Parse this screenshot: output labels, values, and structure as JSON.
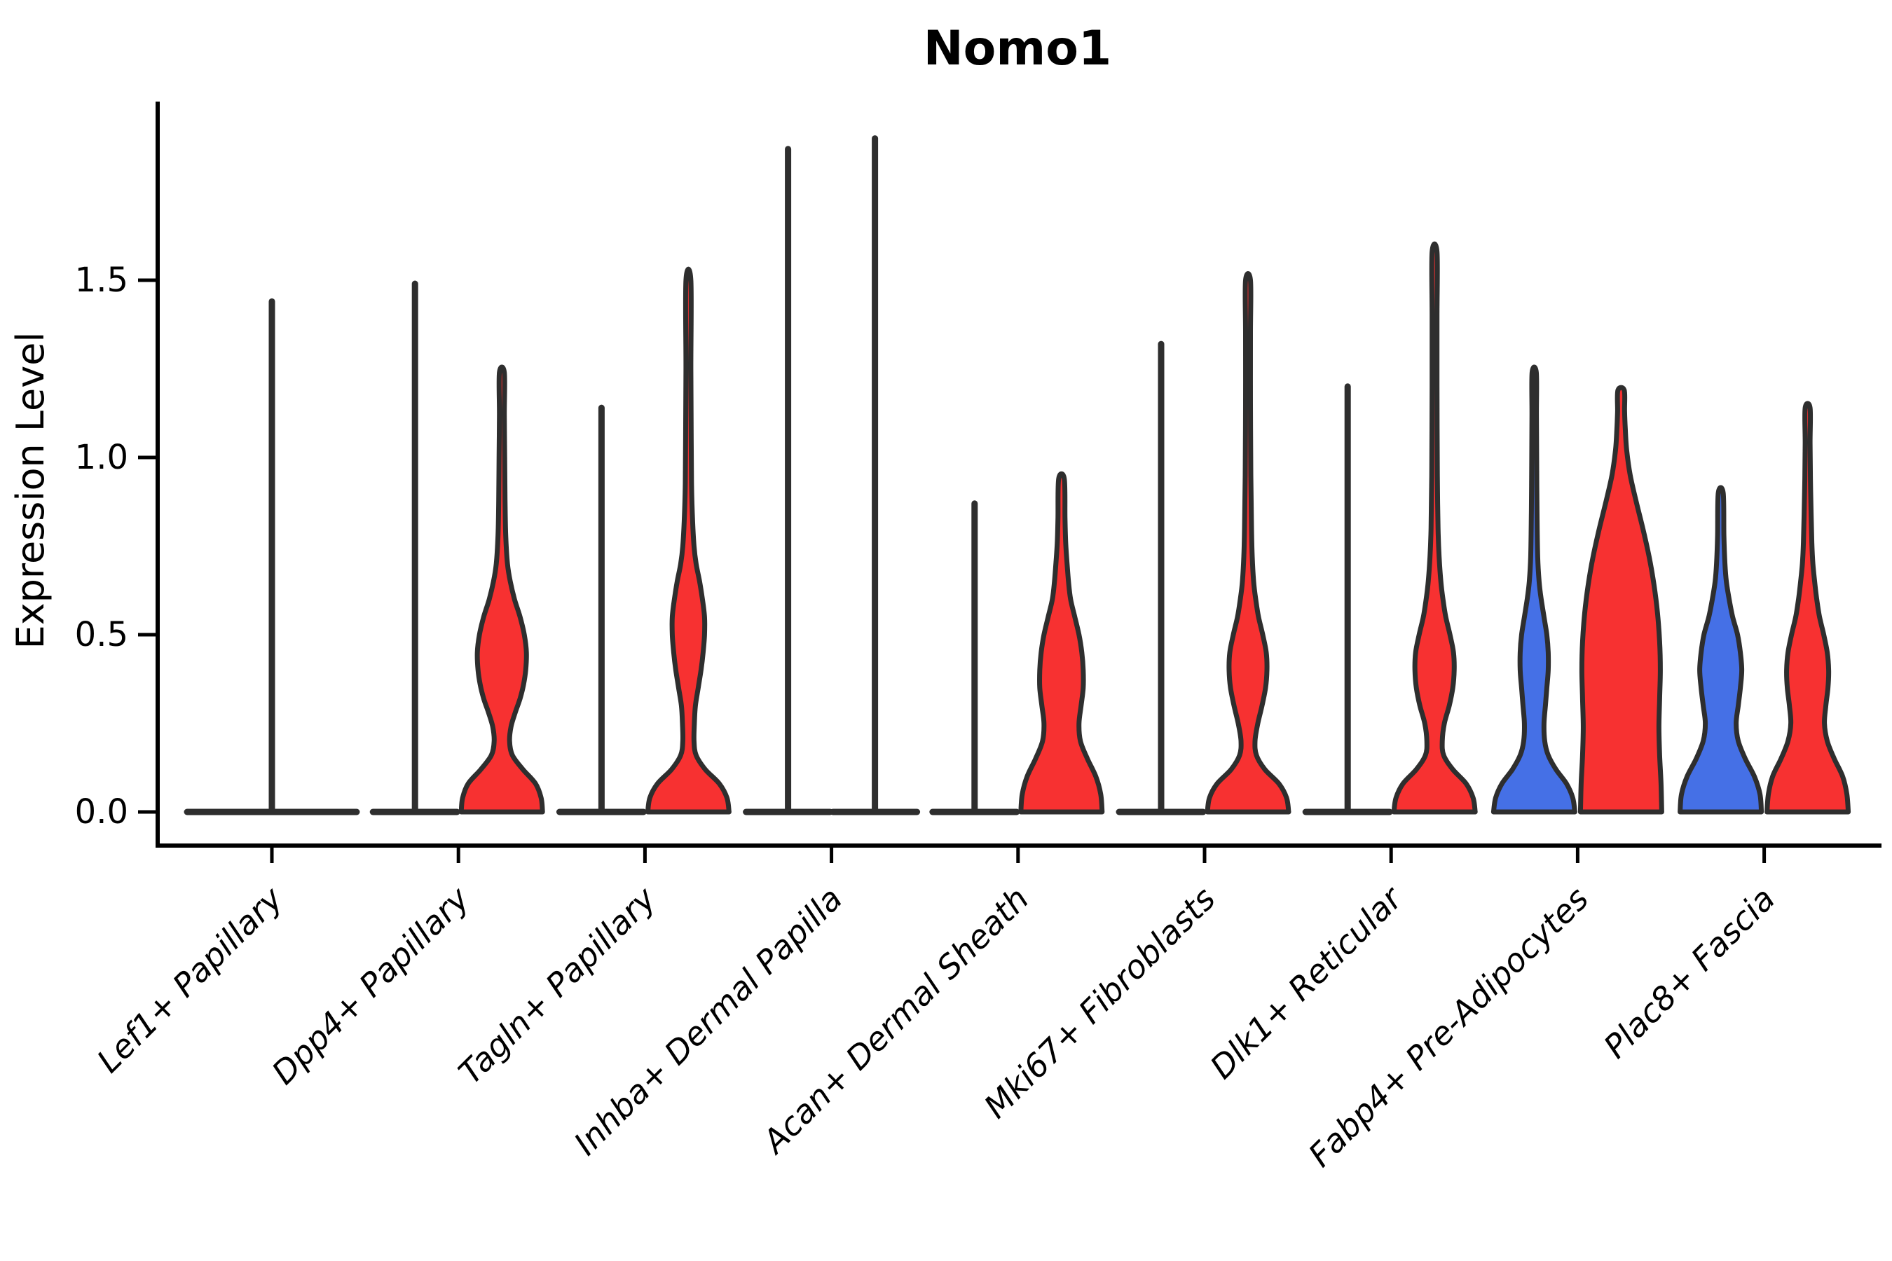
{
  "title": "Nomo1",
  "axes": {
    "ylabel": "Expression Level",
    "ytick_labels": [
      "0.0",
      "0.5",
      "1.0",
      "1.5"
    ]
  },
  "chart_data": {
    "type": "violin",
    "title": "Nomo1",
    "xlabel": "",
    "ylabel": "Expression Level",
    "ylim": [
      -0.1,
      2.0
    ],
    "yticks": [
      0.0,
      0.5,
      1.0,
      1.5
    ],
    "grid": false,
    "legend": "none",
    "palette": {
      "blue": "#4570E6",
      "red": "#F73131",
      "outline": "#2E2E2E"
    },
    "categories": [
      "Lef1+ Papillary",
      "Dpp4+ Papillary",
      "Tagln+ Papillary",
      "Inhba+ Dermal Papilla",
      "Acan+ Dermal Sheath",
      "Mki67+ Fibroblasts",
      "Dlk1+ Reticular",
      "Fabp4+ Pre-Adipocytes",
      "Plac8+ Fascia"
    ],
    "groups": [
      {
        "category": "Lef1+ Papillary",
        "violins": [
          {
            "kind": "spike",
            "fill": "none",
            "max": 1.44,
            "base_half_width": 121
          }
        ]
      },
      {
        "category": "Dpp4+ Papillary",
        "violins": [
          {
            "kind": "spike",
            "fill": "none",
            "max": 1.49,
            "base_half_width": 60
          },
          {
            "kind": "density",
            "fill": "red",
            "max": 1.24,
            "profile": [
              [
                0,
                58
              ],
              [
                0.04,
                56
              ],
              [
                0.08,
                48
              ],
              [
                0.12,
                30
              ],
              [
                0.16,
                15
              ],
              [
                0.2,
                11
              ],
              [
                0.24,
                13
              ],
              [
                0.28,
                19
              ],
              [
                0.32,
                26
              ],
              [
                0.36,
                31
              ],
              [
                0.4,
                34
              ],
              [
                0.45,
                35
              ],
              [
                0.5,
                32
              ],
              [
                0.55,
                26
              ],
              [
                0.6,
                18
              ],
              [
                0.65,
                12
              ],
              [
                0.7,
                8
              ],
              [
                0.78,
                5.5
              ],
              [
                0.88,
                4.5
              ],
              [
                1.0,
                4
              ],
              [
                1.12,
                3.5
              ],
              [
                1.24,
                3.5
              ]
            ]
          }
        ]
      },
      {
        "category": "Tagln+ Papillary",
        "violins": [
          {
            "kind": "spike",
            "fill": "none",
            "max": 1.14,
            "base_half_width": 60
          },
          {
            "kind": "density",
            "fill": "red",
            "max": 1.5,
            "profile": [
              [
                0,
                58
              ],
              [
                0.04,
                55
              ],
              [
                0.08,
                44
              ],
              [
                0.12,
                24
              ],
              [
                0.16,
                11
              ],
              [
                0.2,
                8
              ],
              [
                0.25,
                8.5
              ],
              [
                0.3,
                10
              ],
              [
                0.35,
                14
              ],
              [
                0.4,
                18
              ],
              [
                0.45,
                21
              ],
              [
                0.5,
                23
              ],
              [
                0.55,
                23
              ],
              [
                0.6,
                20
              ],
              [
                0.65,
                16
              ],
              [
                0.7,
                11
              ],
              [
                0.75,
                8
              ],
              [
                0.82,
                6
              ],
              [
                0.92,
                4.5
              ],
              [
                1.05,
                4
              ],
              [
                1.25,
                3.5
              ],
              [
                1.5,
                3.5
              ]
            ]
          }
        ]
      },
      {
        "category": "Inhba+ Dermal Papilla",
        "violins": [
          {
            "kind": "spike",
            "fill": "none",
            "max": 1.87,
            "base_half_width": 60
          },
          {
            "kind": "spike",
            "fill": "none",
            "max": 1.9,
            "base_half_width": 60
          }
        ]
      },
      {
        "category": "Acan+ Dermal Sheath",
        "violins": [
          {
            "kind": "spike",
            "fill": "none",
            "max": 0.87,
            "base_half_width": 60
          },
          {
            "kind": "density",
            "fill": "red",
            "max": 0.94,
            "profile": [
              [
                0,
                58
              ],
              [
                0.05,
                56
              ],
              [
                0.1,
                49
              ],
              [
                0.15,
                37
              ],
              [
                0.2,
                27
              ],
              [
                0.25,
                25
              ],
              [
                0.3,
                28
              ],
              [
                0.35,
                31
              ],
              [
                0.4,
                31
              ],
              [
                0.45,
                29
              ],
              [
                0.5,
                25
              ],
              [
                0.55,
                19
              ],
              [
                0.6,
                13
              ],
              [
                0.65,
                10
              ],
              [
                0.7,
                8
              ],
              [
                0.76,
                6
              ],
              [
                0.83,
                5
              ],
              [
                0.94,
                4
              ]
            ]
          }
        ]
      },
      {
        "category": "Mki67+ Fibroblasts",
        "violins": [
          {
            "kind": "spike",
            "fill": "none",
            "max": 1.32,
            "base_half_width": 60
          },
          {
            "kind": "density",
            "fill": "red",
            "max": 1.5,
            "profile": [
              [
                0,
                58
              ],
              [
                0.04,
                55
              ],
              [
                0.08,
                44
              ],
              [
                0.12,
                24
              ],
              [
                0.16,
                12
              ],
              [
                0.2,
                10
              ],
              [
                0.25,
                14
              ],
              [
                0.3,
                20
              ],
              [
                0.35,
                25
              ],
              [
                0.4,
                27
              ],
              [
                0.45,
                26
              ],
              [
                0.5,
                21
              ],
              [
                0.55,
                15
              ],
              [
                0.6,
                11
              ],
              [
                0.65,
                8
              ],
              [
                0.72,
                6
              ],
              [
                0.8,
                5
              ],
              [
                0.95,
                4
              ],
              [
                1.15,
                3.5
              ],
              [
                1.35,
                3.5
              ],
              [
                1.5,
                3.5
              ]
            ]
          }
        ]
      },
      {
        "category": "Dlk1+ Reticular",
        "violins": [
          {
            "kind": "spike",
            "fill": "none",
            "max": 1.2,
            "base_half_width": 60
          },
          {
            "kind": "density",
            "fill": "red",
            "max": 1.58,
            "profile": [
              [
                0,
                58
              ],
              [
                0.04,
                55
              ],
              [
                0.08,
                45
              ],
              [
                0.12,
                26
              ],
              [
                0.16,
                13
              ],
              [
                0.2,
                11
              ],
              [
                0.25,
                14
              ],
              [
                0.3,
                21
              ],
              [
                0.35,
                26
              ],
              [
                0.4,
                28
              ],
              [
                0.45,
                27
              ],
              [
                0.5,
                22
              ],
              [
                0.55,
                16
              ],
              [
                0.6,
                12
              ],
              [
                0.65,
                9
              ],
              [
                0.72,
                6.5
              ],
              [
                0.8,
                5
              ],
              [
                0.95,
                4
              ],
              [
                1.2,
                3.5
              ],
              [
                1.4,
                3.5
              ],
              [
                1.58,
                3.5
              ]
            ]
          }
        ]
      },
      {
        "category": "Fabp4+ Pre-Adipocytes",
        "violins": [
          {
            "kind": "density",
            "fill": "blue",
            "max": 1.24,
            "profile": [
              [
                0,
                58
              ],
              [
                0.04,
                55
              ],
              [
                0.08,
                46
              ],
              [
                0.12,
                31
              ],
              [
                0.16,
                20
              ],
              [
                0.2,
                15
              ],
              [
                0.25,
                14
              ],
              [
                0.3,
                16
              ],
              [
                0.35,
                18
              ],
              [
                0.4,
                20
              ],
              [
                0.45,
                20
              ],
              [
                0.5,
                18
              ],
              [
                0.55,
                14
              ],
              [
                0.6,
                10
              ],
              [
                0.65,
                7
              ],
              [
                0.72,
                5
              ],
              [
                0.85,
                4
              ],
              [
                1.0,
                3.5
              ],
              [
                1.12,
                3.2
              ],
              [
                1.24,
                3
              ]
            ]
          },
          {
            "kind": "density",
            "fill": "red",
            "max": 1.19,
            "profile": [
              [
                0,
                58
              ],
              [
                0.08,
                57
              ],
              [
                0.16,
                55
              ],
              [
                0.24,
                54
              ],
              [
                0.32,
                55
              ],
              [
                0.4,
                56
              ],
              [
                0.48,
                55
              ],
              [
                0.56,
                52
              ],
              [
                0.64,
                47
              ],
              [
                0.72,
                40
              ],
              [
                0.8,
                31
              ],
              [
                0.88,
                21
              ],
              [
                0.95,
                13
              ],
              [
                1.02,
                8
              ],
              [
                1.08,
                6
              ],
              [
                1.13,
                5
              ],
              [
                1.19,
                4.5
              ]
            ]
          }
        ]
      },
      {
        "category": "Plac8+ Fascia",
        "violins": [
          {
            "kind": "density",
            "fill": "blue",
            "max": 0.9,
            "profile": [
              [
                0,
                58
              ],
              [
                0.05,
                56
              ],
              [
                0.1,
                48
              ],
              [
                0.15,
                35
              ],
              [
                0.2,
                25
              ],
              [
                0.25,
                22
              ],
              [
                0.3,
                25
              ],
              [
                0.35,
                28
              ],
              [
                0.4,
                30
              ],
              [
                0.45,
                28
              ],
              [
                0.5,
                24
              ],
              [
                0.55,
                17
              ],
              [
                0.6,
                12
              ],
              [
                0.65,
                8
              ],
              [
                0.7,
                6
              ],
              [
                0.78,
                4.5
              ],
              [
                0.9,
                3.5
              ]
            ]
          },
          {
            "kind": "density",
            "fill": "red",
            "max": 1.14,
            "profile": [
              [
                0,
                58
              ],
              [
                0.05,
                56
              ],
              [
                0.1,
                50
              ],
              [
                0.15,
                38
              ],
              [
                0.2,
                28
              ],
              [
                0.25,
                24
              ],
              [
                0.3,
                26
              ],
              [
                0.35,
                29
              ],
              [
                0.4,
                30
              ],
              [
                0.45,
                28
              ],
              [
                0.5,
                23
              ],
              [
                0.55,
                17
              ],
              [
                0.6,
                13
              ],
              [
                0.65,
                10
              ],
              [
                0.7,
                7.5
              ],
              [
                0.76,
                6
              ],
              [
                0.84,
                5
              ],
              [
                0.94,
                4
              ],
              [
                1.04,
                3.5
              ],
              [
                1.14,
                3.5
              ]
            ]
          }
        ]
      }
    ]
  }
}
